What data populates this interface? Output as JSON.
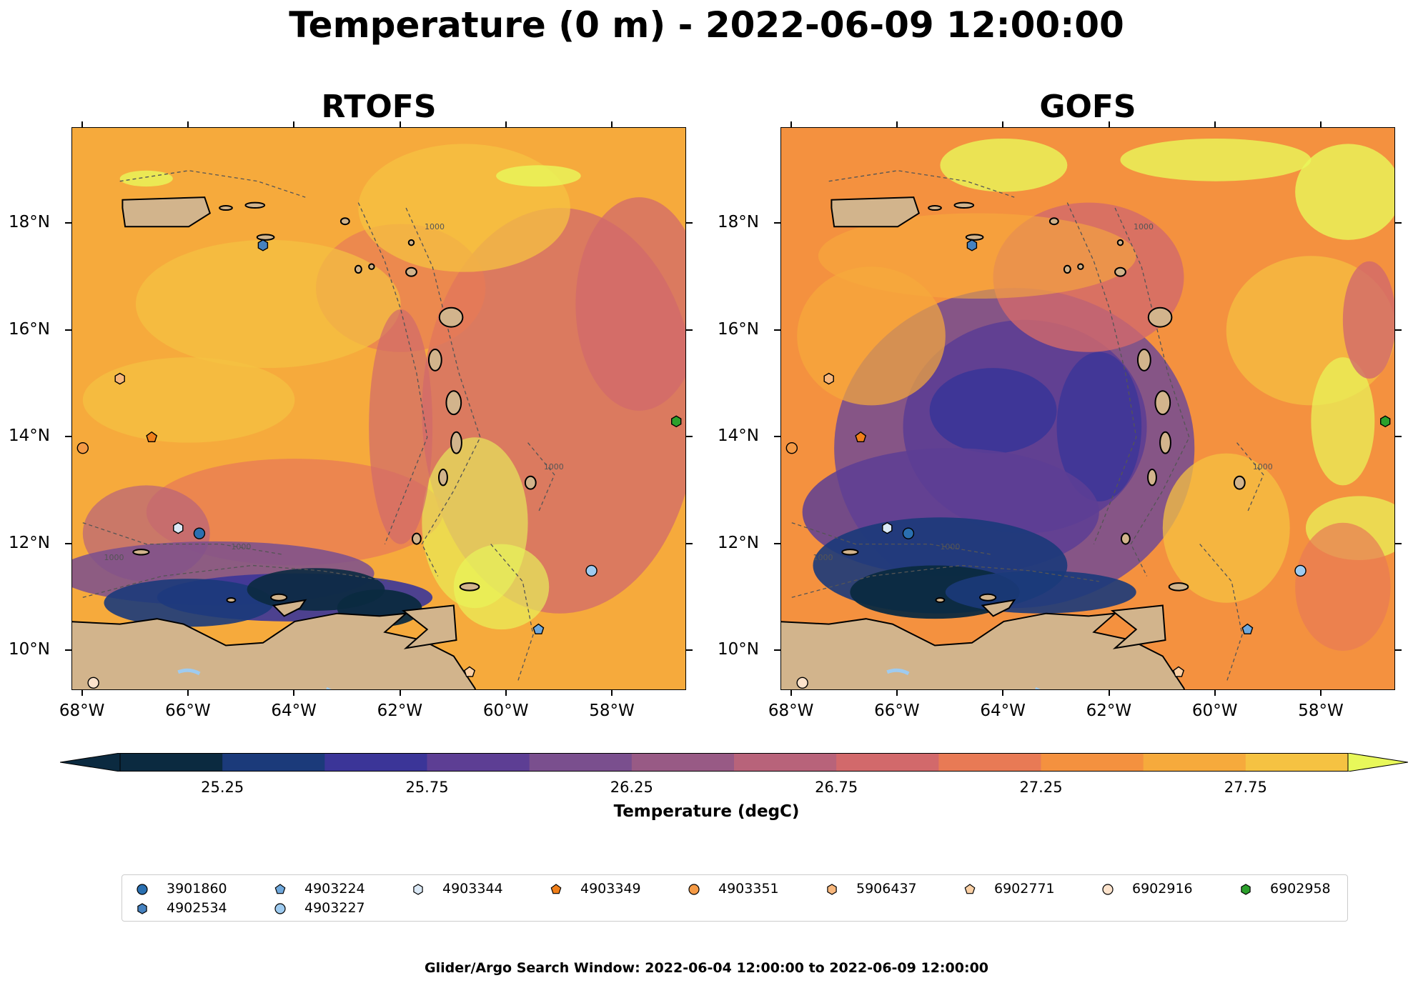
{
  "main_title": "Temperature (0 m) - 2022-06-09 12:00:00",
  "footer": "Glider/Argo Search Window: 2022-06-04 12:00:00 to 2022-06-09 12:00:00",
  "chart_data": {
    "type": "heatmap",
    "panels": [
      {
        "title": "RTOFS",
        "dominant_field": "warm (27.0-27.75 degC) with cool band along southern coast"
      },
      {
        "title": "GOFS",
        "dominant_field": "cool eastern Caribbean pool (25.75-26.25 degC), warm Atlantic"
      }
    ],
    "xaxis": {
      "ticks": [
        "68°W",
        "66°W",
        "64°W",
        "62°W",
        "60°W",
        "58°W"
      ],
      "values": [
        -68,
        -66,
        -64,
        -62,
        -60,
        -58
      ],
      "range": [
        -68.2,
        -56.6
      ]
    },
    "yaxis": {
      "ticks": [
        "10°N",
        "12°N",
        "14°N",
        "16°N",
        "18°N"
      ],
      "values": [
        10,
        12,
        14,
        16,
        18
      ],
      "range": [
        9.25,
        19.8
      ]
    },
    "contour_label": "1000",
    "colorbar": {
      "label": "Temperature (degC)",
      "ticks": [
        "25.25",
        "25.75",
        "26.25",
        "26.75",
        "27.25",
        "27.75"
      ],
      "min": 25.0,
      "max": 28.0,
      "step": 0.125,
      "extend": "both",
      "colors": [
        "#0b2a40",
        "#1b3a7a",
        "#3b3598",
        "#5d3e94",
        "#7a4f8e",
        "#985a85",
        "#b8637a",
        "#d2696b",
        "#e87a55",
        "#f4913f",
        "#f6aa3c",
        "#f5c242",
        "#e8f85a"
      ]
    },
    "floats": [
      {
        "id": "3901860",
        "lon": -65.8,
        "lat": 12.2,
        "marker": "circle",
        "color": "#2a6fb0"
      },
      {
        "id": "4902534",
        "lon": -64.6,
        "lat": 17.6,
        "marker": "hexagon",
        "color": "#4682c0"
      },
      {
        "id": "4903224",
        "lon": -59.4,
        "lat": 10.4,
        "marker": "pentagon",
        "color": "#6fa8dc"
      },
      {
        "id": "4903227",
        "lon": -58.4,
        "lat": 11.5,
        "marker": "circle",
        "color": "#9ecbf0"
      },
      {
        "id": "4903344",
        "lon": -66.2,
        "lat": 12.3,
        "marker": "hexagon",
        "color": "#dbe9f6"
      },
      {
        "id": "4903349",
        "lon": -66.7,
        "lat": 14.0,
        "marker": "pentagon",
        "color": "#f07f1a"
      },
      {
        "id": "4903351",
        "lon": -68.0,
        "lat": 13.8,
        "marker": "circle",
        "color": "#f59a45"
      },
      {
        "id": "5906437",
        "lon": -67.3,
        "lat": 15.1,
        "marker": "hexagon",
        "color": "#f8b77c"
      },
      {
        "id": "6902771",
        "lon": -60.7,
        "lat": 9.6,
        "marker": "pentagon",
        "color": "#fbd0a5"
      },
      {
        "id": "6902916",
        "lon": -67.8,
        "lat": 9.4,
        "marker": "circle",
        "color": "#fde3cc"
      },
      {
        "id": "6902958",
        "lon": -56.8,
        "lat": 14.3,
        "marker": "hexagon",
        "color": "#2ca02c"
      }
    ]
  }
}
